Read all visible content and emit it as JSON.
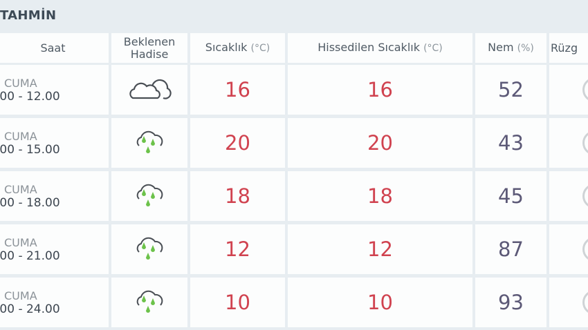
{
  "title": "TAHMİN",
  "headers": {
    "saat": "Saat",
    "hadise_1": "Beklenen",
    "hadise_2": "Hadise",
    "sicaklik": "Sıcaklık",
    "sicaklik_unit": "(°C)",
    "hissedilen": "Hissedilen Sıcaklık",
    "hissedilen_unit": "(°C)",
    "nem": "Nem",
    "nem_unit": "(%)",
    "ruzgar": "Rüzg"
  },
  "rows": [
    {
      "day": "CUMA",
      "time": ".00 - 12.00",
      "icon": "cloudy-icon",
      "temp": "16",
      "feels": "16",
      "humidity": "52"
    },
    {
      "day": "CUMA",
      "time": ".00 - 15.00",
      "icon": "rain-icon",
      "temp": "20",
      "feels": "20",
      "humidity": "43"
    },
    {
      "day": "CUMA",
      "time": ".00 - 18.00",
      "icon": "rain-icon",
      "temp": "18",
      "feels": "18",
      "humidity": "45"
    },
    {
      "day": "CUMA",
      "time": ".00 - 21.00",
      "icon": "rain-icon",
      "temp": "12",
      "feels": "12",
      "humidity": "87"
    },
    {
      "day": "CUMA",
      "time": ".00 - 24.00",
      "icon": "rain-icon",
      "temp": "10",
      "feels": "10",
      "humidity": "93"
    }
  ],
  "colors": {
    "temp": "#d0424f",
    "humidity": "#5c5977",
    "rain": "#6cc24a"
  }
}
